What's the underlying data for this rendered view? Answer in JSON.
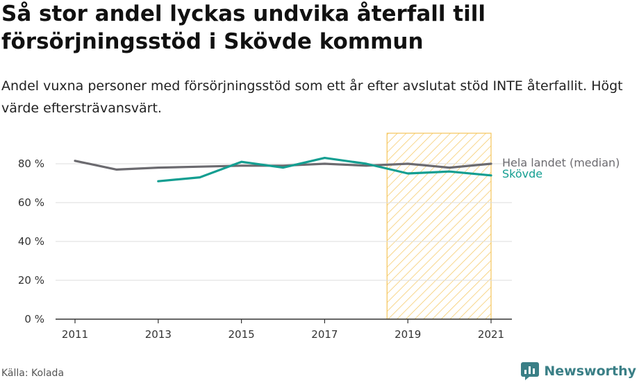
{
  "title": "Så stor andel lyckas undvika återfall till försörjningsstöd i Skövde kommun",
  "subtitle": "Andel vuxna personer med försörjningsstöd som ett år efter avslutat stöd INTE återfallit. Högt värde eftersträvansvärt.",
  "source": "Källa: Kolada",
  "brand": "Newsworthy",
  "colors": {
    "national": "#6b6a6f",
    "skovde": "#139e91",
    "highlight_stroke": "#f5c55a",
    "grid": "#dddddd",
    "axis": "#333333",
    "brand": "#3a7f86"
  },
  "chart_data": {
    "type": "line",
    "x": [
      2011,
      2012,
      2013,
      2014,
      2015,
      2016,
      2017,
      2018,
      2019,
      2020,
      2021
    ],
    "x_ticks": [
      2011,
      2013,
      2015,
      2017,
      2019,
      2021
    ],
    "y_ticks": [
      0,
      20,
      40,
      60,
      80
    ],
    "y_tick_labels": [
      "0 %",
      "20 %",
      "40 %",
      "60 %",
      "80 %"
    ],
    "ylim": [
      0,
      90
    ],
    "grid": true,
    "highlight_range": [
      2018.5,
      2021
    ],
    "series": [
      {
        "name": "Hela landet (median)",
        "color_key": "national",
        "values": [
          81.5,
          77,
          78,
          78.5,
          79,
          79,
          80,
          79,
          80,
          78,
          80
        ]
      },
      {
        "name": "Skövde",
        "color_key": "skovde",
        "values": [
          null,
          null,
          71,
          73,
          81,
          78,
          83,
          80,
          75,
          76,
          74
        ]
      }
    ]
  }
}
